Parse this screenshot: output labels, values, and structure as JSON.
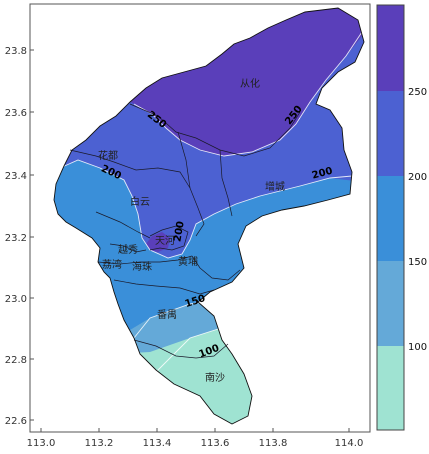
{
  "map": {
    "x_ticks": [
      "113.0",
      "113.2",
      "113.4",
      "113.6",
      "113.8",
      "114.0"
    ],
    "y_ticks": [
      "23.8",
      "23.6",
      "23.4",
      "23.2",
      "23.0",
      "22.8",
      "22.6"
    ],
    "districts": [
      {
        "name": "从化"
      },
      {
        "name": "花都"
      },
      {
        "name": "增城"
      },
      {
        "name": "白云"
      },
      {
        "name": "天河"
      },
      {
        "name": "越秀"
      },
      {
        "name": "荔湾"
      },
      {
        "name": "海珠"
      },
      {
        "name": "黄埔"
      },
      {
        "name": "番禺"
      },
      {
        "name": "南沙"
      }
    ],
    "contour_labels": [
      "250",
      "250",
      "200",
      "200",
      "200",
      "150",
      "100"
    ],
    "colors": {
      "band_100_below": "#9fe3d2",
      "band_100_150": "#64a9d8",
      "band_150_200": "#3a8fd9",
      "band_200_250": "#4c61d2",
      "band_250_above": "#5a3fba"
    }
  },
  "legend": {
    "labels": [
      "250",
      "200",
      "150",
      "100"
    ]
  }
}
